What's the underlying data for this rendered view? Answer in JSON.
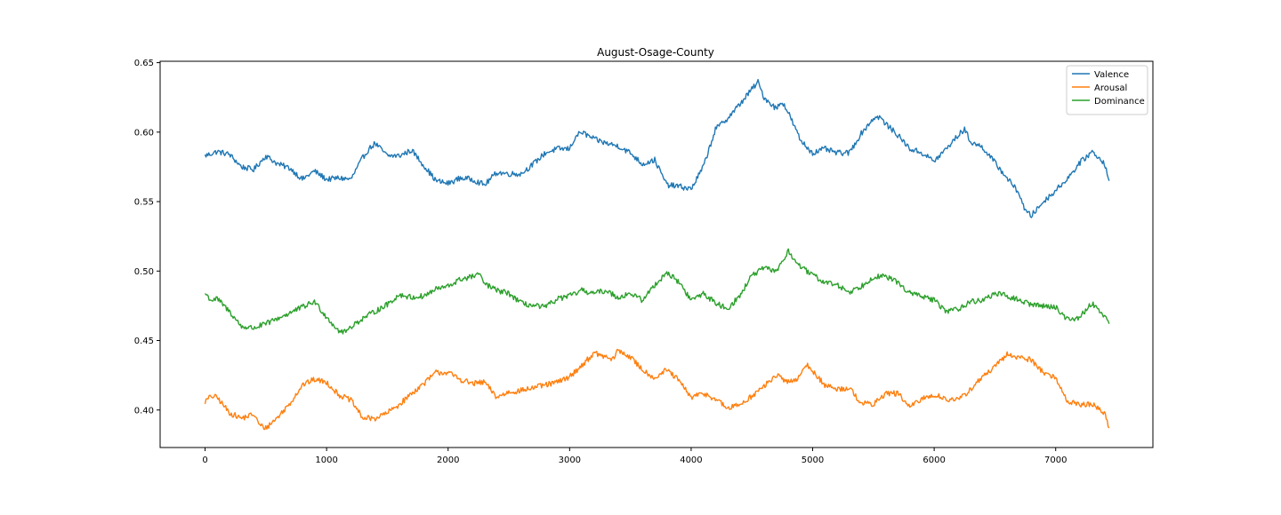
{
  "chart_data": {
    "type": "line",
    "title": "August-Osage-County",
    "xlabel": "",
    "ylabel": "",
    "xlim": [
      -370,
      7800
    ],
    "ylim": [
      0.373,
      0.651
    ],
    "xticks": [
      0,
      1000,
      2000,
      3000,
      4000,
      5000,
      6000,
      7000
    ],
    "xtick_labels": [
      "0",
      "1000",
      "2000",
      "3000",
      "4000",
      "5000",
      "6000",
      "7000"
    ],
    "yticks": [
      0.4,
      0.45,
      0.5,
      0.55,
      0.6,
      0.65
    ],
    "ytick_labels": [
      "0.40",
      "0.45",
      "0.50",
      "0.55",
      "0.60",
      "0.65"
    ],
    "grid": false,
    "legend": "top-right",
    "series": [
      {
        "name": "Valence",
        "color": "#1f77b4",
        "x": [
          0,
          100,
          200,
          300,
          400,
          500,
          600,
          700,
          800,
          900,
          1000,
          1100,
          1200,
          1300,
          1350,
          1400,
          1500,
          1600,
          1700,
          1800,
          1900,
          2000,
          2100,
          2200,
          2300,
          2400,
          2500,
          2600,
          2700,
          2800,
          2900,
          3000,
          3050,
          3100,
          3200,
          3300,
          3400,
          3500,
          3600,
          3700,
          3800,
          3900,
          4000,
          4100,
          4200,
          4300,
          4400,
          4500,
          4550,
          4600,
          4700,
          4750,
          4800,
          4900,
          5000,
          5100,
          5200,
          5300,
          5400,
          5500,
          5550,
          5600,
          5700,
          5800,
          5900,
          6000,
          6100,
          6200,
          6250,
          6300,
          6400,
          6500,
          6600,
          6700,
          6750,
          6800,
          6900,
          7000,
          7100,
          7200,
          7300,
          7400,
          7440
        ],
        "values": [
          0.583,
          0.586,
          0.584,
          0.575,
          0.573,
          0.583,
          0.577,
          0.574,
          0.566,
          0.572,
          0.566,
          0.567,
          0.566,
          0.582,
          0.588,
          0.592,
          0.583,
          0.583,
          0.587,
          0.576,
          0.565,
          0.563,
          0.567,
          0.566,
          0.562,
          0.571,
          0.57,
          0.57,
          0.577,
          0.585,
          0.588,
          0.588,
          0.597,
          0.6,
          0.595,
          0.592,
          0.59,
          0.585,
          0.577,
          0.58,
          0.562,
          0.561,
          0.559,
          0.575,
          0.602,
          0.61,
          0.62,
          0.631,
          0.636,
          0.625,
          0.617,
          0.622,
          0.614,
          0.594,
          0.585,
          0.588,
          0.585,
          0.585,
          0.599,
          0.61,
          0.611,
          0.606,
          0.598,
          0.588,
          0.585,
          0.579,
          0.588,
          0.598,
          0.602,
          0.593,
          0.589,
          0.578,
          0.567,
          0.556,
          0.543,
          0.54,
          0.55,
          0.558,
          0.567,
          0.578,
          0.586,
          0.578,
          0.565
        ]
      },
      {
        "name": "Arousal",
        "color": "#ff7f0e",
        "x": [
          0,
          50,
          100,
          200,
          300,
          400,
          450,
          500,
          600,
          700,
          800,
          900,
          1000,
          1100,
          1200,
          1300,
          1400,
          1500,
          1600,
          1700,
          1800,
          1900,
          2000,
          2100,
          2200,
          2300,
          2400,
          2500,
          2600,
          2700,
          2800,
          2900,
          3000,
          3100,
          3200,
          3300,
          3350,
          3400,
          3500,
          3600,
          3700,
          3800,
          3900,
          4000,
          4100,
          4200,
          4300,
          4400,
          4500,
          4600,
          4700,
          4800,
          4900,
          4950,
          5000,
          5100,
          5200,
          5300,
          5400,
          5500,
          5600,
          5700,
          5800,
          5900,
          6000,
          6100,
          6200,
          6300,
          6400,
          6500,
          6600,
          6700,
          6800,
          6900,
          7000,
          7100,
          7200,
          7300,
          7400,
          7440
        ],
        "values": [
          0.406,
          0.41,
          0.409,
          0.398,
          0.394,
          0.397,
          0.389,
          0.387,
          0.395,
          0.405,
          0.418,
          0.422,
          0.42,
          0.411,
          0.407,
          0.394,
          0.394,
          0.398,
          0.404,
          0.412,
          0.419,
          0.427,
          0.427,
          0.422,
          0.419,
          0.42,
          0.409,
          0.413,
          0.414,
          0.416,
          0.418,
          0.42,
          0.424,
          0.432,
          0.441,
          0.438,
          0.436,
          0.443,
          0.438,
          0.429,
          0.423,
          0.429,
          0.421,
          0.409,
          0.412,
          0.408,
          0.401,
          0.404,
          0.41,
          0.417,
          0.425,
          0.42,
          0.424,
          0.433,
          0.428,
          0.418,
          0.415,
          0.416,
          0.405,
          0.404,
          0.412,
          0.412,
          0.402,
          0.408,
          0.411,
          0.408,
          0.407,
          0.415,
          0.424,
          0.431,
          0.44,
          0.438,
          0.436,
          0.427,
          0.423,
          0.406,
          0.404,
          0.404,
          0.398,
          0.387
        ]
      },
      {
        "name": "Dominance",
        "color": "#2ca02c",
        "x": [
          0,
          50,
          100,
          200,
          300,
          400,
          500,
          600,
          700,
          800,
          900,
          1000,
          1100,
          1150,
          1200,
          1300,
          1400,
          1500,
          1600,
          1700,
          1800,
          1900,
          2000,
          2100,
          2200,
          2250,
          2300,
          2400,
          2500,
          2600,
          2700,
          2800,
          2900,
          3000,
          3100,
          3200,
          3300,
          3400,
          3500,
          3600,
          3700,
          3800,
          3900,
          4000,
          4100,
          4200,
          4300,
          4400,
          4500,
          4600,
          4700,
          4800,
          4900,
          5000,
          5100,
          5200,
          5300,
          5400,
          5500,
          5600,
          5700,
          5800,
          5900,
          6000,
          6100,
          6200,
          6300,
          6400,
          6500,
          6600,
          6700,
          6800,
          6900,
          7000,
          7100,
          7200,
          7300,
          7400,
          7440
        ],
        "values": [
          0.484,
          0.479,
          0.48,
          0.471,
          0.46,
          0.459,
          0.462,
          0.466,
          0.47,
          0.474,
          0.478,
          0.467,
          0.457,
          0.456,
          0.46,
          0.466,
          0.471,
          0.476,
          0.483,
          0.481,
          0.482,
          0.487,
          0.489,
          0.494,
          0.496,
          0.498,
          0.491,
          0.486,
          0.484,
          0.477,
          0.475,
          0.474,
          0.48,
          0.482,
          0.486,
          0.484,
          0.486,
          0.481,
          0.484,
          0.479,
          0.49,
          0.499,
          0.492,
          0.479,
          0.484,
          0.477,
          0.473,
          0.482,
          0.497,
          0.502,
          0.5,
          0.514,
          0.503,
          0.497,
          0.492,
          0.49,
          0.485,
          0.489,
          0.496,
          0.496,
          0.492,
          0.484,
          0.482,
          0.479,
          0.471,
          0.473,
          0.478,
          0.479,
          0.484,
          0.482,
          0.479,
          0.476,
          0.475,
          0.474,
          0.465,
          0.467,
          0.477,
          0.468,
          0.462
        ]
      }
    ]
  }
}
